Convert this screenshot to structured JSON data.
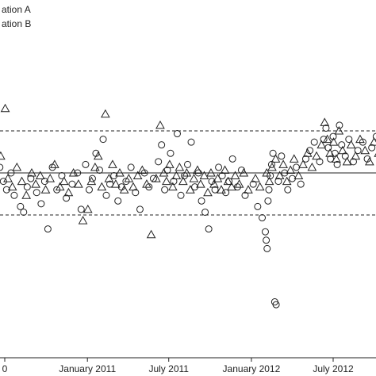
{
  "chart_data": {
    "type": "scatter",
    "x_axis": {
      "type": "date",
      "tick_labels": [
        "0",
        "January 2011",
        "July 2011",
        "January 2012",
        "July 2012"
      ],
      "tick_dates": [
        "2010-07-01",
        "2011-01-01",
        "2011-07-01",
        "2012-01-01",
        "2012-07-01"
      ],
      "range": [
        "2010-06-15",
        "2012-11-30"
      ]
    },
    "y_axis": {
      "ylim": [
        0,
        100
      ],
      "tick_labels": []
    },
    "grid": false,
    "legend": {
      "placement": "top-left",
      "entries": [
        {
          "label": "ation A",
          "marker": "circle"
        },
        {
          "label": "ation B",
          "marker": "triangle"
        }
      ]
    },
    "reference_lines": [
      {
        "y": 65,
        "style": "dashed"
      },
      {
        "y": 50,
        "style": "solid"
      },
      {
        "y": 35,
        "style": "dashed"
      }
    ],
    "series": [
      {
        "name": "ation A",
        "marker": "circle",
        "points": [
          {
            "x": "2010-06-20",
            "y": 52
          },
          {
            "x": "2010-06-28",
            "y": 47
          },
          {
            "x": "2010-07-05",
            "y": 44
          },
          {
            "x": "2010-07-15",
            "y": 50
          },
          {
            "x": "2010-07-22",
            "y": 42
          },
          {
            "x": "2010-08-05",
            "y": 38
          },
          {
            "x": "2010-08-12",
            "y": 36
          },
          {
            "x": "2010-08-20",
            "y": 45
          },
          {
            "x": "2010-08-28",
            "y": 48
          },
          {
            "x": "2010-09-10",
            "y": 43
          },
          {
            "x": "2010-09-20",
            "y": 39
          },
          {
            "x": "2010-09-28",
            "y": 47
          },
          {
            "x": "2010-10-05",
            "y": 30
          },
          {
            "x": "2010-10-15",
            "y": 52
          },
          {
            "x": "2010-10-25",
            "y": 44
          },
          {
            "x": "2010-11-05",
            "y": 49
          },
          {
            "x": "2010-11-15",
            "y": 41
          },
          {
            "x": "2010-11-28",
            "y": 46
          },
          {
            "x": "2010-12-10",
            "y": 50
          },
          {
            "x": "2010-12-18",
            "y": 37
          },
          {
            "x": "2010-12-28",
            "y": 53
          },
          {
            "x": "2011-01-05",
            "y": 44
          },
          {
            "x": "2011-01-12",
            "y": 48
          },
          {
            "x": "2011-01-20",
            "y": 57
          },
          {
            "x": "2011-01-28",
            "y": 51
          },
          {
            "x": "2011-02-05",
            "y": 62
          },
          {
            "x": "2011-02-12",
            "y": 42
          },
          {
            "x": "2011-02-20",
            "y": 46
          },
          {
            "x": "2011-03-01",
            "y": 49
          },
          {
            "x": "2011-03-10",
            "y": 40
          },
          {
            "x": "2011-03-18",
            "y": 45
          },
          {
            "x": "2011-03-28",
            "y": 47
          },
          {
            "x": "2011-04-08",
            "y": 52
          },
          {
            "x": "2011-04-18",
            "y": 43
          },
          {
            "x": "2011-04-28",
            "y": 37
          },
          {
            "x": "2011-05-08",
            "y": 50
          },
          {
            "x": "2011-05-18",
            "y": 45
          },
          {
            "x": "2011-05-28",
            "y": 48
          },
          {
            "x": "2011-06-08",
            "y": 54
          },
          {
            "x": "2011-06-15",
            "y": 60
          },
          {
            "x": "2011-06-22",
            "y": 44
          },
          {
            "x": "2011-06-28",
            "y": 51
          },
          {
            "x": "2011-07-05",
            "y": 57
          },
          {
            "x": "2011-07-12",
            "y": 47
          },
          {
            "x": "2011-07-20",
            "y": 64
          },
          {
            "x": "2011-07-28",
            "y": 42
          },
          {
            "x": "2011-08-05",
            "y": 49
          },
          {
            "x": "2011-08-12",
            "y": 53
          },
          {
            "x": "2011-08-20",
            "y": 61
          },
          {
            "x": "2011-08-28",
            "y": 45
          },
          {
            "x": "2011-09-05",
            "y": 50
          },
          {
            "x": "2011-09-12",
            "y": 40
          },
          {
            "x": "2011-09-20",
            "y": 36
          },
          {
            "x": "2011-09-28",
            "y": 30
          },
          {
            "x": "2011-10-05",
            "y": 47
          },
          {
            "x": "2011-10-12",
            "y": 44
          },
          {
            "x": "2011-10-20",
            "y": 52
          },
          {
            "x": "2011-10-28",
            "y": 49
          },
          {
            "x": "2011-11-05",
            "y": 43
          },
          {
            "x": "2011-11-12",
            "y": 47
          },
          {
            "x": "2011-11-20",
            "y": 55
          },
          {
            "x": "2011-12-01",
            "y": 45
          },
          {
            "x": "2011-12-10",
            "y": 51
          },
          {
            "x": "2011-12-18",
            "y": 42
          },
          {
            "x": "2012-01-05",
            "y": 46
          },
          {
            "x": "2012-01-15",
            "y": 38
          },
          {
            "x": "2012-01-25",
            "y": 34
          },
          {
            "x": "2012-02-01",
            "y": 29
          },
          {
            "x": "2012-02-03",
            "y": 26
          },
          {
            "x": "2012-02-05",
            "y": 23
          },
          {
            "x": "2012-02-07",
            "y": 40
          },
          {
            "x": "2012-02-09",
            "y": 44
          },
          {
            "x": "2012-02-12",
            "y": 49
          },
          {
            "x": "2012-02-15",
            "y": 53
          },
          {
            "x": "2012-02-18",
            "y": 57
          },
          {
            "x": "2012-02-22",
            "y": 4
          },
          {
            "x": "2012-02-25",
            "y": 3
          },
          {
            "x": "2012-03-01",
            "y": 47
          },
          {
            "x": "2012-03-08",
            "y": 56
          },
          {
            "x": "2012-03-15",
            "y": 50
          },
          {
            "x": "2012-03-22",
            "y": 44
          },
          {
            "x": "2012-04-01",
            "y": 48
          },
          {
            "x": "2012-04-10",
            "y": 52
          },
          {
            "x": "2012-04-20",
            "y": 46
          },
          {
            "x": "2012-05-01",
            "y": 55
          },
          {
            "x": "2012-05-10",
            "y": 58
          },
          {
            "x": "2012-05-20",
            "y": 61
          },
          {
            "x": "2012-06-01",
            "y": 54
          },
          {
            "x": "2012-06-10",
            "y": 62
          },
          {
            "x": "2012-06-15",
            "y": 66
          },
          {
            "x": "2012-06-20",
            "y": 59
          },
          {
            "x": "2012-06-25",
            "y": 55
          },
          {
            "x": "2012-07-01",
            "y": 63
          },
          {
            "x": "2012-07-05",
            "y": 57
          },
          {
            "x": "2012-07-10",
            "y": 53
          },
          {
            "x": "2012-07-15",
            "y": 67
          },
          {
            "x": "2012-07-20",
            "y": 60
          },
          {
            "x": "2012-07-28",
            "y": 56
          },
          {
            "x": "2012-08-05",
            "y": 62
          },
          {
            "x": "2012-08-15",
            "y": 54
          },
          {
            "x": "2012-08-25",
            "y": 58
          },
          {
            "x": "2012-09-05",
            "y": 61
          },
          {
            "x": "2012-09-15",
            "y": 55
          },
          {
            "x": "2012-09-25",
            "y": 59
          },
          {
            "x": "2012-10-05",
            "y": 63
          },
          {
            "x": "2012-10-15",
            "y": 57
          },
          {
            "x": "2012-10-25",
            "y": 53
          },
          {
            "x": "2012-11-05",
            "y": 60
          },
          {
            "x": "2012-11-15",
            "y": 56
          },
          {
            "x": "2012-11-25",
            "y": 52
          }
        ]
      },
      {
        "name": "ation B",
        "marker": "triangle",
        "points": [
          {
            "x": "2010-06-22",
            "y": 56
          },
          {
            "x": "2010-07-02",
            "y": 73
          },
          {
            "x": "2010-07-08",
            "y": 48
          },
          {
            "x": "2010-07-18",
            "y": 45
          },
          {
            "x": "2010-07-28",
            "y": 52
          },
          {
            "x": "2010-08-08",
            "y": 47
          },
          {
            "x": "2010-08-18",
            "y": 42
          },
          {
            "x": "2010-08-30",
            "y": 50
          },
          {
            "x": "2010-09-08",
            "y": 46
          },
          {
            "x": "2010-09-18",
            "y": 49
          },
          {
            "x": "2010-09-30",
            "y": 44
          },
          {
            "x": "2010-10-10",
            "y": 48
          },
          {
            "x": "2010-10-20",
            "y": 53
          },
          {
            "x": "2010-11-01",
            "y": 45
          },
          {
            "x": "2010-11-10",
            "y": 47
          },
          {
            "x": "2010-11-20",
            "y": 43
          },
          {
            "x": "2010-12-01",
            "y": 50
          },
          {
            "x": "2010-12-12",
            "y": 46
          },
          {
            "x": "2010-12-22",
            "y": 33
          },
          {
            "x": "2011-01-02",
            "y": 37
          },
          {
            "x": "2011-01-10",
            "y": 47
          },
          {
            "x": "2011-01-18",
            "y": 52
          },
          {
            "x": "2011-01-25",
            "y": 56
          },
          {
            "x": "2011-02-02",
            "y": 45
          },
          {
            "x": "2011-02-10",
            "y": 71
          },
          {
            "x": "2011-02-18",
            "y": 48
          },
          {
            "x": "2011-02-26",
            "y": 53
          },
          {
            "x": "2011-03-05",
            "y": 46
          },
          {
            "x": "2011-03-14",
            "y": 50
          },
          {
            "x": "2011-03-24",
            "y": 44
          },
          {
            "x": "2011-04-03",
            "y": 48
          },
          {
            "x": "2011-04-13",
            "y": 45
          },
          {
            "x": "2011-04-23",
            "y": 49
          },
          {
            "x": "2011-05-03",
            "y": 51
          },
          {
            "x": "2011-05-13",
            "y": 46
          },
          {
            "x": "2011-05-23",
            "y": 28
          },
          {
            "x": "2011-06-03",
            "y": 48
          },
          {
            "x": "2011-06-12",
            "y": 67
          },
          {
            "x": "2011-06-20",
            "y": 50
          },
          {
            "x": "2011-06-26",
            "y": 47
          },
          {
            "x": "2011-07-03",
            "y": 53
          },
          {
            "x": "2011-07-10",
            "y": 45
          },
          {
            "x": "2011-07-18",
            "y": 49
          },
          {
            "x": "2011-07-25",
            "y": 52
          },
          {
            "x": "2011-08-02",
            "y": 47
          },
          {
            "x": "2011-08-10",
            "y": 50
          },
          {
            "x": "2011-08-18",
            "y": 44
          },
          {
            "x": "2011-08-26",
            "y": 48
          },
          {
            "x": "2011-09-03",
            "y": 51
          },
          {
            "x": "2011-09-10",
            "y": 46
          },
          {
            "x": "2011-09-18",
            "y": 49
          },
          {
            "x": "2011-09-26",
            "y": 43
          },
          {
            "x": "2011-10-03",
            "y": 50
          },
          {
            "x": "2011-10-10",
            "y": 46
          },
          {
            "x": "2011-10-18",
            "y": 48
          },
          {
            "x": "2011-10-26",
            "y": 44
          },
          {
            "x": "2011-11-03",
            "y": 51
          },
          {
            "x": "2011-11-10",
            "y": 47
          },
          {
            "x": "2011-11-18",
            "y": 45
          },
          {
            "x": "2011-11-26",
            "y": 49
          },
          {
            "x": "2011-12-05",
            "y": 46
          },
          {
            "x": "2011-12-15",
            "y": 50
          },
          {
            "x": "2011-12-25",
            "y": 44
          },
          {
            "x": "2012-01-10",
            "y": 48
          },
          {
            "x": "2012-01-20",
            "y": 45
          },
          {
            "x": "2012-02-04",
            "y": 50
          },
          {
            "x": "2012-02-10",
            "y": 47
          },
          {
            "x": "2012-02-16",
            "y": 52
          },
          {
            "x": "2012-02-24",
            "y": 55
          },
          {
            "x": "2012-03-04",
            "y": 49
          },
          {
            "x": "2012-03-12",
            "y": 53
          },
          {
            "x": "2012-03-20",
            "y": 47
          },
          {
            "x": "2012-03-28",
            "y": 51
          },
          {
            "x": "2012-04-05",
            "y": 55
          },
          {
            "x": "2012-04-15",
            "y": 49
          },
          {
            "x": "2012-04-25",
            "y": 53
          },
          {
            "x": "2012-05-05",
            "y": 57
          },
          {
            "x": "2012-05-15",
            "y": 52
          },
          {
            "x": "2012-05-25",
            "y": 56
          },
          {
            "x": "2012-06-05",
            "y": 60
          },
          {
            "x": "2012-06-12",
            "y": 68
          },
          {
            "x": "2012-06-18",
            "y": 62
          },
          {
            "x": "2012-06-24",
            "y": 57
          },
          {
            "x": "2012-07-02",
            "y": 61
          },
          {
            "x": "2012-07-08",
            "y": 55
          },
          {
            "x": "2012-07-14",
            "y": 65
          },
          {
            "x": "2012-07-22",
            "y": 58
          },
          {
            "x": "2012-08-01",
            "y": 54
          },
          {
            "x": "2012-08-10",
            "y": 60
          },
          {
            "x": "2012-08-20",
            "y": 56
          },
          {
            "x": "2012-08-30",
            "y": 62
          },
          {
            "x": "2012-09-10",
            "y": 58
          },
          {
            "x": "2012-09-20",
            "y": 54
          },
          {
            "x": "2012-09-30",
            "y": 61
          },
          {
            "x": "2012-10-10",
            "y": 57
          },
          {
            "x": "2012-10-20",
            "y": 52
          },
          {
            "x": "2012-10-30",
            "y": 59
          },
          {
            "x": "2012-11-10",
            "y": 55
          },
          {
            "x": "2012-11-20",
            "y": 50
          }
        ]
      }
    ]
  }
}
